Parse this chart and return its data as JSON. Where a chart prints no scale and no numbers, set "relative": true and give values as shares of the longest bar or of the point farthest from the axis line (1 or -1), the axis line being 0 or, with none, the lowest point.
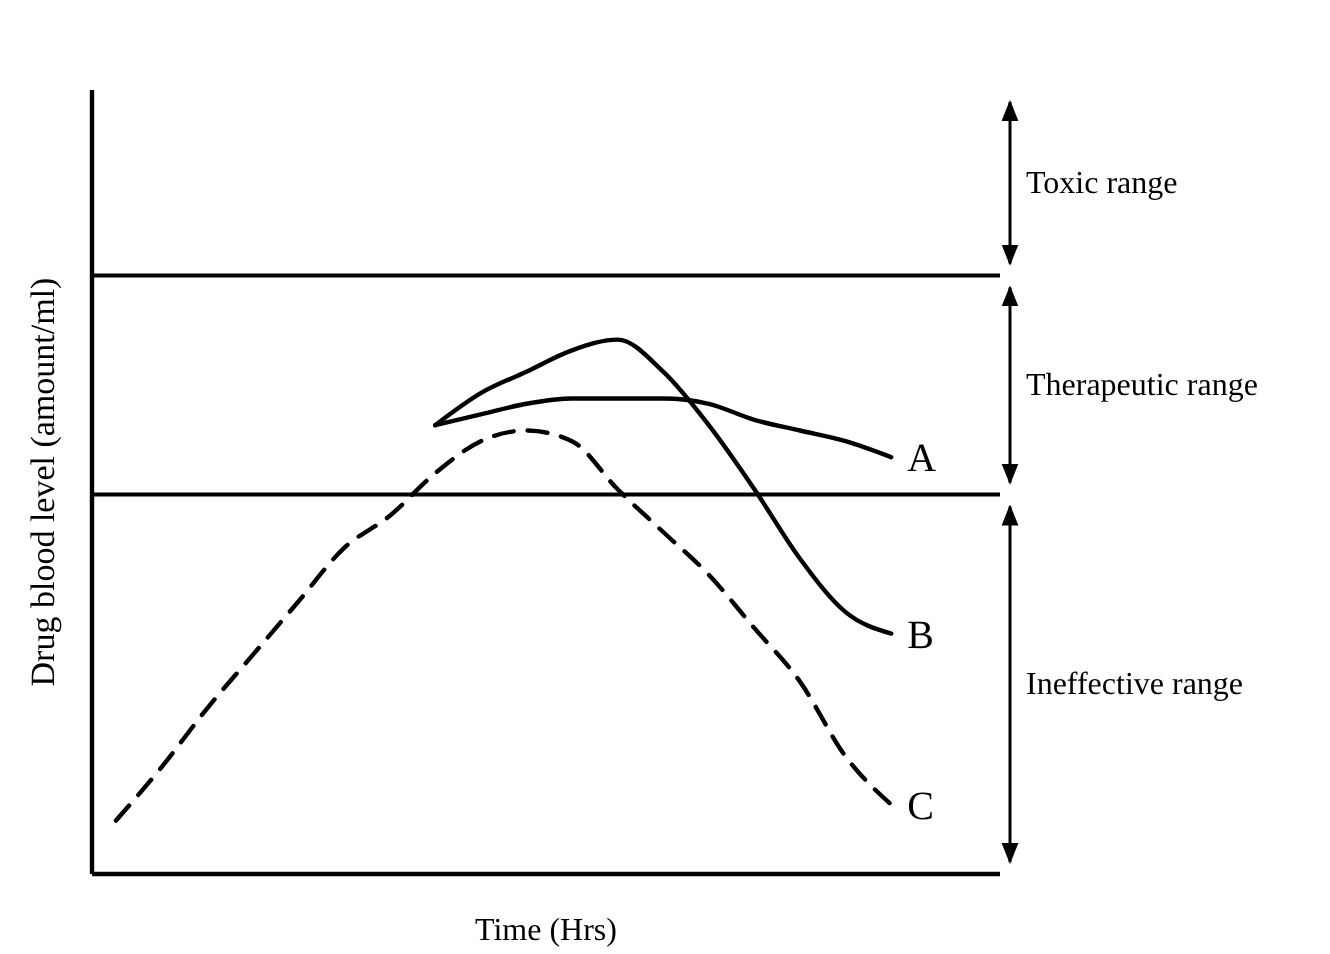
{
  "chart_data": {
    "type": "line",
    "relative": true,
    "xlabel": "Time (Hrs)",
    "ylabel": "Drug blood level (amount/ml)",
    "categories": [
      null,
      null,
      null,
      null,
      null,
      null,
      null,
      null,
      null,
      null,
      null,
      null,
      null,
      null,
      null,
      null,
      null,
      null
    ],
    "series": [
      {
        "name": "A",
        "color": "#000000",
        "line_style": "solid",
        "values": [
          null,
          null,
          null,
          null,
          null,
          null,
          null,
          0.84,
          0.86,
          0.88,
          0.89,
          0.89,
          0.89,
          0.88,
          0.85,
          0.83,
          0.81,
          0.78
        ]
      },
      {
        "name": "B",
        "color": "#000000",
        "line_style": "solid",
        "values": [
          null,
          null,
          null,
          null,
          null,
          null,
          null,
          0.84,
          0.9,
          0.94,
          0.98,
          1.0,
          0.94,
          0.84,
          0.72,
          0.59,
          0.49,
          0.45
        ]
      },
      {
        "name": "C",
        "color": "#000000",
        "line_style": "dashed",
        "values": [
          0.1,
          0.2,
          0.31,
          0.41,
          0.51,
          0.61,
          0.67,
          0.75,
          0.81,
          0.83,
          0.81,
          0.72,
          0.64,
          0.56,
          0.46,
          0.36,
          0.22,
          0.13
        ]
      }
    ],
    "ref_lines": [
      {
        "axis": "y",
        "value": 1.12
      },
      {
        "axis": "y",
        "value": 0.71
      }
    ],
    "annotations": [
      "Toxic range",
      "Therapeutic range",
      "Ineffective range"
    ]
  }
}
